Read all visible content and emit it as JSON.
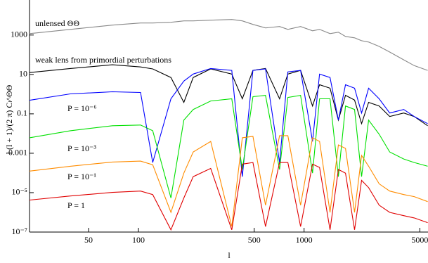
{
  "chart_data": {
    "type": "line",
    "x_label": "l",
    "y_label": "l (l + 1)/(2 π) Cₗ^ΘΘ",
    "log_x": true,
    "log_y": true,
    "xlim": [
      22,
      5600
    ],
    "ylim": [
      1e-07,
      60000
    ],
    "xticks": [
      50,
      100,
      500,
      1000,
      5000
    ],
    "yticks": [
      {
        "value": 1e-07,
        "label": "10⁻⁷"
      },
      {
        "value": 1e-05,
        "label": "10⁻⁵"
      },
      0.001,
      0.1,
      10,
      1000
    ],
    "x": [
      22,
      38.8,
      69.7,
      103,
      122,
      157,
      188,
      214,
      273,
      366,
      424,
      491,
      585,
      711,
      798,
      953,
      1125,
      1240,
      1435,
      1612,
      1778,
      2018,
      2225,
      2453,
      2840,
      3288,
      3996,
      4625,
      5570
    ],
    "series": [
      {
        "name": "unlensed ΘΘ",
        "color": "#888888",
        "values": [
          1180,
          1940,
          3190,
          4090,
          4090,
          4440,
          5240,
          5240,
          5690,
          6180,
          5240,
          3470,
          2290,
          2700,
          1940,
          2700,
          1640,
          1940,
          1180,
          1390,
          850,
          720,
          515,
          440,
          265,
          137,
          55,
          28,
          16
        ]
      },
      {
        "name": "weak lens from primordial perturbations",
        "color": "#000000",
        "values": [
          12.4,
          20,
          31,
          24,
          19,
          7,
          0.38,
          7,
          19,
          10.5,
          0.58,
          16,
          20,
          0.58,
          10.5,
          16,
          0.25,
          3,
          2,
          0.048,
          0.87,
          0.5,
          0.032,
          0.38,
          0.25,
          0.073,
          0.11,
          0.073,
          0.025
        ]
      },
      {
        "name": "P = 10⁻⁶",
        "color": "#0000ff",
        "values": [
          0.49,
          1.03,
          1.32,
          1.22,
          0.00034,
          0.58,
          4.6,
          10.5,
          20,
          16,
          6.5e-05,
          16,
          19,
          0.00034,
          13.5,
          16,
          0.004,
          10.5,
          7,
          0.048,
          3,
          2,
          0.11,
          2,
          0.58,
          0.11,
          0.167,
          0.073,
          0.032
        ]
      },
      {
        "name": "P = 10⁻³",
        "color": "#00e000",
        "values": [
          0.0061,
          0.0139,
          0.025,
          0.027,
          0.0139,
          5.4e-06,
          0.048,
          0.167,
          0.45,
          0.58,
          0.00015,
          0.74,
          0.87,
          0.00015,
          0.68,
          0.87,
          9.8e-05,
          0.58,
          0.58,
          6.5e-05,
          0.25,
          0.167,
          6.5e-05,
          0.048,
          0.0092,
          0.00116,
          0.00051,
          0.00034,
          0.00022
        ]
      },
      {
        "name": "P = 10⁻¹",
        "color": "#ff8c00",
        "values": [
          0.000124,
          0.00022,
          0.00036,
          0.0004,
          0.00026,
          1e-06,
          9.8e-05,
          0.00116,
          0.004,
          1.9e-07,
          0.0061,
          0.0072,
          2.3e-06,
          0.0078,
          0.0078,
          2.3e-06,
          0.0061,
          0.004,
          1e-06,
          0.00265,
          0.00176,
          1e-06,
          0.00077,
          0.00022,
          2.8e-05,
          1.2e-05,
          8e-06,
          6.3e-06,
          3.5e-06
        ]
      },
      {
        "name": "P = 1",
        "color": "#e00000",
        "values": [
          4.2e-06,
          6.8e-06,
          1.03e-05,
          1.2e-05,
          8e-06,
          1.3e-07,
          5.4e-06,
          6.5e-05,
          0.00017,
          1.3e-07,
          0.00028,
          0.00034,
          1.9e-07,
          0.00034,
          0.00034,
          1.9e-07,
          0.00028,
          0.00019,
          1.3e-07,
          0.00015,
          9.8e-05,
          1.3e-07,
          4.2e-05,
          1.8e-05,
          2.3e-06,
          1e-06,
          6.8e-07,
          5.2e-07,
          3e-07
        ]
      }
    ]
  }
}
